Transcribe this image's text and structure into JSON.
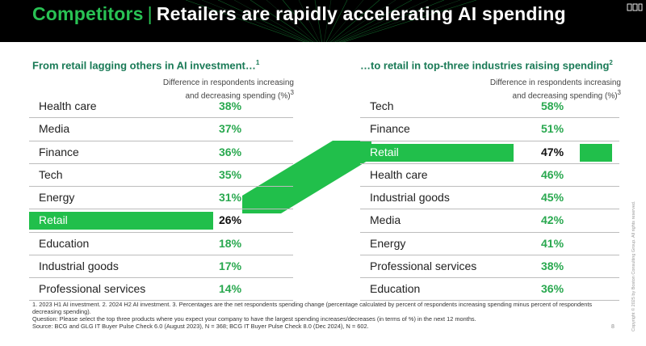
{
  "header": {
    "title_accent": "Competitors",
    "title_separator": "|",
    "title_main": "Retailers are rapidly accelerating AI spending",
    "logo_icon": "bcg-logo-icon",
    "colors": {
      "background": "#000000",
      "accent": "#29c254",
      "highlight": "#21bf4b"
    }
  },
  "left": {
    "heading": "From retail lagging others in AI investment…",
    "heading_sup": "1",
    "column_header_line1": "Difference in respondents increasing",
    "column_header_line2": "and decreasing spending (%)",
    "column_header_sup": "3",
    "rows": [
      {
        "label": "Health care",
        "value": "38%"
      },
      {
        "label": "Media",
        "value": "37%"
      },
      {
        "label": "Finance",
        "value": "36%"
      },
      {
        "label": "Tech",
        "value": "35%"
      },
      {
        "label": "Energy",
        "value": "31%"
      },
      {
        "label": "Retail",
        "value": "26%",
        "highlight": true
      },
      {
        "label": "Education",
        "value": "18%"
      },
      {
        "label": "Industrial goods",
        "value": "17%"
      },
      {
        "label": "Professional services",
        "value": "14%"
      }
    ]
  },
  "right": {
    "heading": "…to retail in top-three industries raising spending",
    "heading_sup": "2",
    "column_header_line1": "Difference in respondents increasing",
    "column_header_line2": "and decreasing spending (%)",
    "column_header_sup": "3",
    "rows": [
      {
        "label": "Tech",
        "value": "58%"
      },
      {
        "label": "Finance",
        "value": "51%"
      },
      {
        "label": "Retail",
        "value": "47%",
        "highlight": true
      },
      {
        "label": "Health care",
        "value": "46%"
      },
      {
        "label": "Industrial goods",
        "value": "45%"
      },
      {
        "label": "Media",
        "value": "42%"
      },
      {
        "label": "Energy",
        "value": "41%"
      },
      {
        "label": "Professional services",
        "value": "38%"
      },
      {
        "label": "Education",
        "value": "36%"
      }
    ]
  },
  "footnotes": {
    "line1": "1. 2023 H1 AI investment. 2. 2024 H2 AI investment. 3. Percentages are the net respondents spending change (percentage calculated by percent of respondents increasing spending minus percent of respondents decreasing spending).",
    "line2": "Question: Please select the top three products where you expect your company to have the largest spending increases/decreases (in terms of %) in the next 12 months.",
    "line3": "Source: BCG and GLG IT Buyer Pulse Check 6.0 (August 2023), N = 368; BCG IT Buyer Pulse Check 8.0 (Dec 2024), N = 602."
  },
  "page_number": "8",
  "copyright": "Copyright © 2025 by Boston Consulting Group. All rights reserved."
}
